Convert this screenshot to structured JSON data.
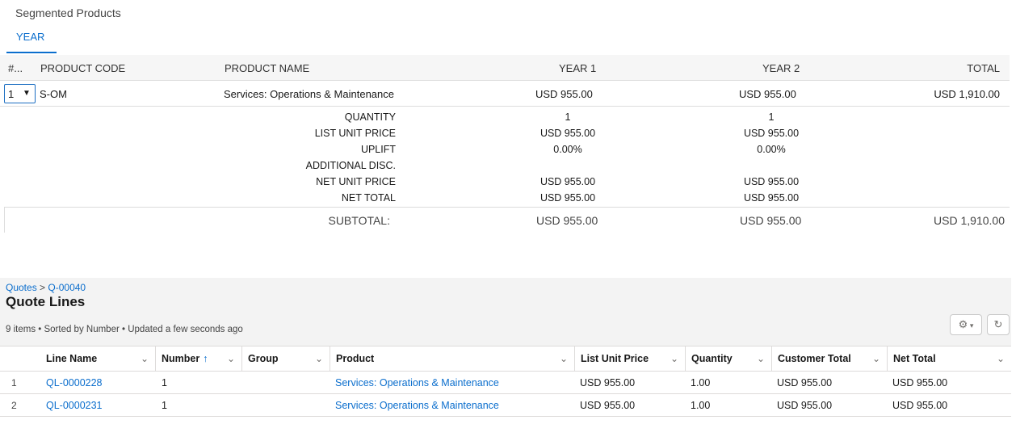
{
  "segmented": {
    "title": "Segmented Products",
    "tab": "YEAR",
    "columns": {
      "num": "#...",
      "code": "PRODUCT CODE",
      "name": "PRODUCT NAME",
      "year1": "YEAR 1",
      "year2": "YEAR 2",
      "total": "TOTAL"
    },
    "row": {
      "number": "1",
      "code": "S-OM",
      "name": "Services: Operations & Maintenance",
      "year1": "USD 955.00",
      "year2": "USD 955.00",
      "total": "USD 1,910.00"
    },
    "details": [
      {
        "label": "QUANTITY",
        "year1": "1",
        "year2": "1"
      },
      {
        "label": "LIST UNIT PRICE",
        "year1": "USD 955.00",
        "year2": "USD 955.00"
      },
      {
        "label": "UPLIFT",
        "year1": "0.00%",
        "year2": "0.00%"
      },
      {
        "label": "ADDITIONAL DISC.",
        "year1": "",
        "year2": ""
      },
      {
        "label": "NET UNIT PRICE",
        "year1": "USD 955.00",
        "year2": "USD 955.00"
      },
      {
        "label": "NET TOTAL",
        "year1": "USD 955.00",
        "year2": "USD 955.00"
      }
    ],
    "subtotal": {
      "label": "SUBTOTAL:",
      "year1": "USD 955.00",
      "year2": "USD 955.00",
      "total": "USD 1,910.00"
    }
  },
  "quote_lines": {
    "breadcrumb": {
      "root": "Quotes",
      "separator": ">",
      "current": "Q-00040"
    },
    "title": "Quote Lines",
    "meta": "9 items • Sorted by Number • Updated a few seconds ago",
    "settings_icon": "gear-icon",
    "refresh_icon": "refresh-icon",
    "columns": {
      "line_name": "Line Name",
      "number": "Number",
      "group": "Group",
      "product": "Product",
      "list_unit_price": "List Unit Price",
      "quantity": "Quantity",
      "customer_total": "Customer Total",
      "net_total": "Net Total"
    },
    "rows": [
      {
        "idx": "1",
        "line_name": "QL-0000228",
        "number": "1",
        "group": "",
        "product": "Services: Operations & Maintenance",
        "list_unit_price": "USD 955.00",
        "quantity": "1.00",
        "customer_total": "USD 955.00",
        "net_total": "USD 955.00"
      },
      {
        "idx": "2",
        "line_name": "QL-0000231",
        "number": "1",
        "group": "",
        "product": "Services: Operations & Maintenance",
        "list_unit_price": "USD 955.00",
        "quantity": "1.00",
        "customer_total": "USD 955.00",
        "net_total": "USD 955.00"
      }
    ]
  },
  "colors": {
    "link": "#0b6ecd",
    "header_bg": "#f3f3f3",
    "border": "#dddbda"
  }
}
